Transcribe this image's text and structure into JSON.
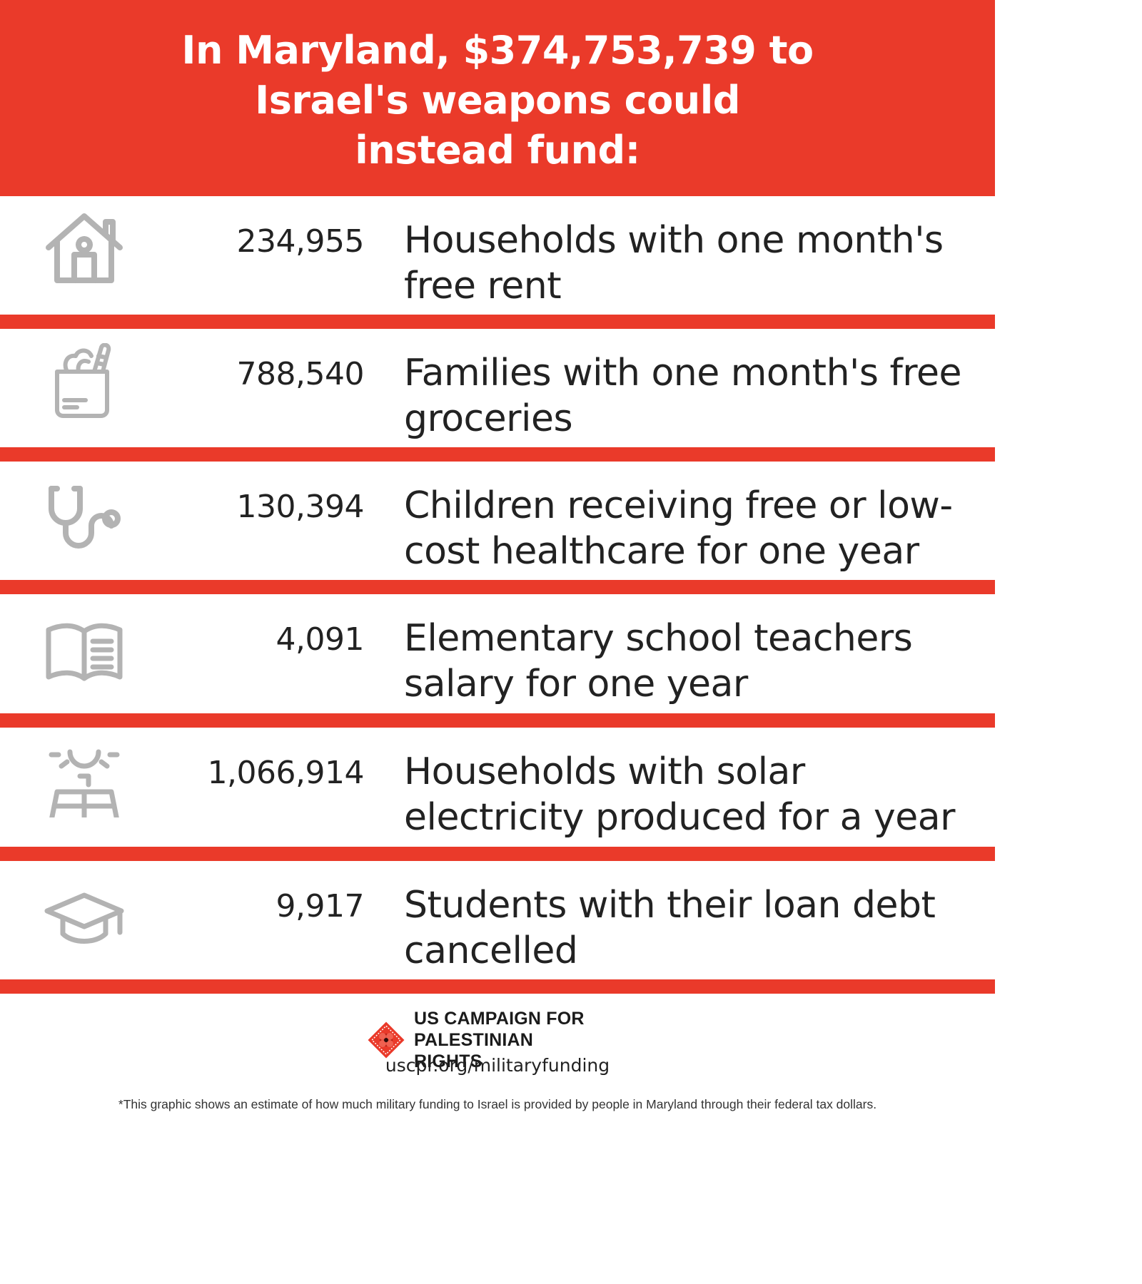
{
  "header": {
    "title": "In Maryland, $374,753,739 to Israel's weapons could instead fund:"
  },
  "colors": {
    "accent_red": "#ea3a2a",
    "icon_gray": "#b3b3b3",
    "text_dark": "#222222"
  },
  "items": [
    {
      "icon": "house-icon",
      "number": "234,955",
      "description": "Households with one month's free rent"
    },
    {
      "icon": "grocery-bag-icon",
      "number": "788,540",
      "description": "Families with one month's free groceries"
    },
    {
      "icon": "stethoscope-icon",
      "number": "130,394",
      "description": "Children receiving free or low-cost healthcare for one year"
    },
    {
      "icon": "open-book-icon",
      "number": "4,091",
      "description": "Elementary school teachers salary for one year"
    },
    {
      "icon": "solar-panel-icon",
      "number": "1,066,914",
      "description": "Households with solar electricity produced for a year"
    },
    {
      "icon": "graduation-cap-icon",
      "number": "9,917",
      "description": "Students with their loan debt cancelled"
    }
  ],
  "footer": {
    "org_name": "US CAMPAIGN FOR PALESTINIAN RIGHTS",
    "url": "uscpr.org/militaryfunding",
    "footnote": "*This graphic shows an estimate of how much military funding to Israel is provided by people in Maryland through their federal tax dollars."
  }
}
